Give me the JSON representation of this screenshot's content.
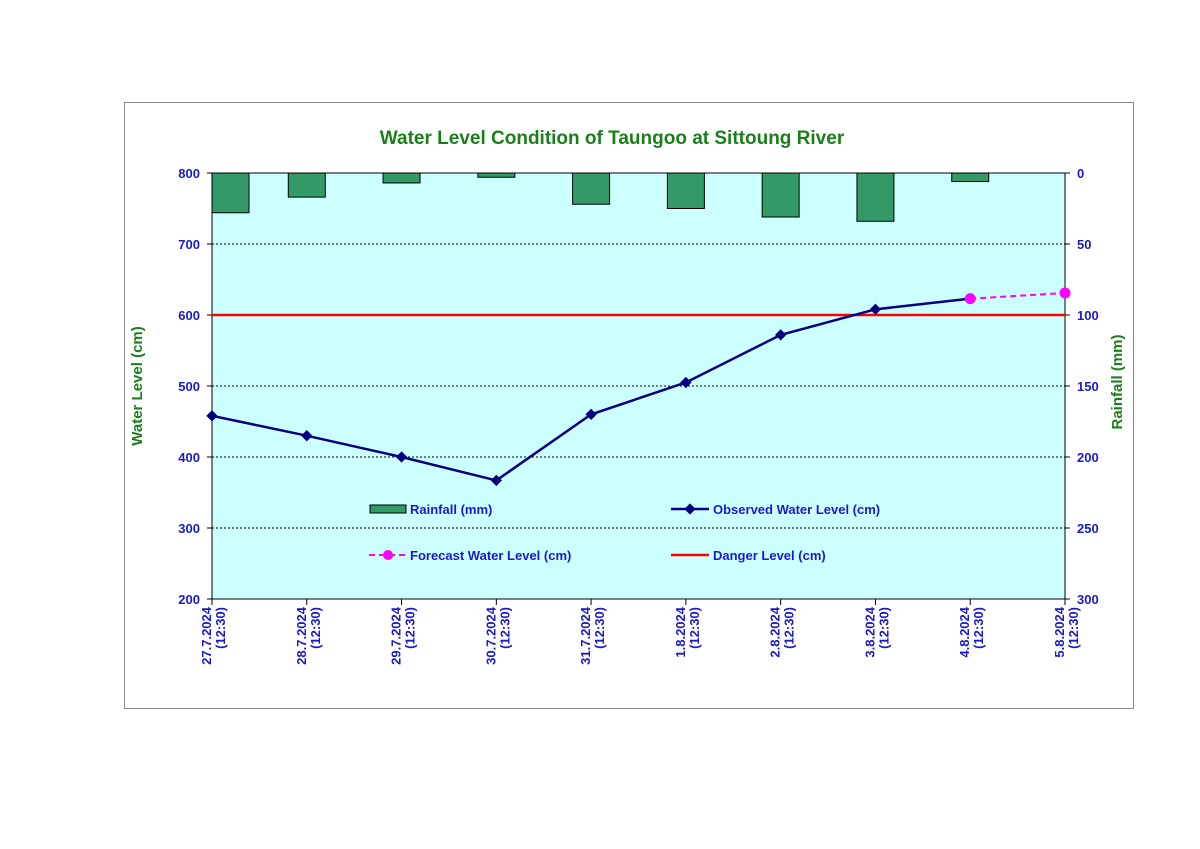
{
  "colors": {
    "title": "#1a7f1a",
    "axis_text": "#1a1acd",
    "plot_bg": "#ccffff",
    "rain_fill": "#339966",
    "observed": "#000080",
    "forecast": "#ff00ff",
    "danger": "#ff0000"
  },
  "chart_data": {
    "type": "line",
    "title": "Water Level Condition of Taungoo at  Sittoung River",
    "ylabel": "Water Level (cm)",
    "y2label": "Rainfall (mm)",
    "ylim": [
      200,
      800
    ],
    "y2lim": [
      0,
      300
    ],
    "y2_inverted": true,
    "yticks": [
      200,
      300,
      400,
      500,
      600,
      700,
      800
    ],
    "y2ticks": [
      300,
      250,
      200,
      150,
      100,
      50,
      0
    ],
    "grid": true,
    "categories": [
      [
        "27.7.2024",
        "(12:30)"
      ],
      [
        "28.7.2024",
        "(12:30)"
      ],
      [
        "29.7.2024",
        "(12:30)"
      ],
      [
        "30.7.2024",
        "(12:30)"
      ],
      [
        "31.7.2024",
        "(12:30)"
      ],
      [
        "1.8.2024",
        "(12:30)"
      ],
      [
        "2.8.2024",
        "(12:30)"
      ],
      [
        "3.8.2024",
        "(12:30)"
      ],
      [
        "4.8.2024",
        "(12:30)"
      ],
      [
        "5.8.2024",
        "(12:30)"
      ]
    ],
    "series": [
      {
        "name": "Rainfall (mm)",
        "kind": "bar",
        "axis": "right",
        "values": [
          28,
          17,
          7,
          3,
          22,
          25,
          31,
          34,
          6,
          null
        ]
      },
      {
        "name": "Observed Water Level (cm)",
        "kind": "line",
        "axis": "left",
        "values": [
          458,
          430,
          400,
          367,
          460,
          505,
          572,
          608,
          623,
          null
        ]
      },
      {
        "name": "Forecast Water Level (cm)",
        "kind": "line-dashed",
        "axis": "left",
        "values": [
          null,
          null,
          null,
          null,
          null,
          null,
          null,
          null,
          623,
          631
        ]
      },
      {
        "name": "Danger Level (cm)",
        "kind": "hline",
        "axis": "left",
        "value": 600
      }
    ],
    "legend_placement": "center"
  }
}
